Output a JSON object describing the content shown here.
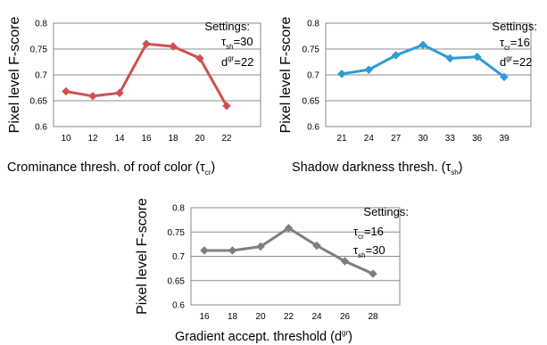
{
  "chart_data": [
    {
      "type": "line",
      "x": [
        10,
        12,
        14,
        16,
        18,
        20,
        22
      ],
      "categories": [
        "10",
        "12",
        "14",
        "16",
        "18",
        "20",
        "22"
      ],
      "series": [
        {
          "values": [
            0.668,
            0.659,
            0.665,
            0.76,
            0.755,
            0.732,
            0.64
          ],
          "color": "#d0504f"
        }
      ],
      "ylabel": "Pixel level F-score",
      "xlabel": {
        "text": "Crominance thresh. of roof color (",
        "sym": "τ",
        "sub": "cr",
        "sup": "",
        "end": ")"
      },
      "ylim": [
        0.6,
        0.8
      ],
      "yticks": [
        "0.6",
        "0.65",
        "0.7",
        "0.75",
        "0.8"
      ],
      "grid": "horizontal",
      "settings": {
        "title": "Settings:",
        "params": [
          {
            "sym": "τ",
            "sub": "sh",
            "sup": "",
            "value": "=30"
          },
          {
            "sym": "d",
            "sub": "",
            "sup": "gr",
            "value": "=22"
          }
        ]
      }
    },
    {
      "type": "line",
      "x": [
        21,
        24,
        27,
        30,
        33,
        36,
        39
      ],
      "categories": [
        "21",
        "24",
        "27",
        "30",
        "33",
        "36",
        "39"
      ],
      "series": [
        {
          "values": [
            0.702,
            0.71,
            0.738,
            0.758,
            0.732,
            0.735,
            0.696
          ],
          "color": "#2e9bd6"
        }
      ],
      "ylabel": "Pixel level F-score",
      "xlabel": {
        "text": "Shadow darkness thresh. (",
        "sym": "τ",
        "sub": "sh",
        "sup": "",
        "end": ")"
      },
      "ylim": [
        0.6,
        0.8
      ],
      "yticks": [
        "0.6",
        "0.65",
        "0.7",
        "0.75",
        "0.8"
      ],
      "grid": "horizontal",
      "settings": {
        "title": "Settings:",
        "params": [
          {
            "sym": "τ",
            "sub": "cr",
            "sup": "",
            "value": "=16"
          },
          {
            "sym": "d",
            "sub": "",
            "sup": "gr",
            "value": "=22"
          }
        ]
      }
    },
    {
      "type": "line",
      "x": [
        16,
        18,
        20,
        22,
        24,
        26,
        28
      ],
      "categories": [
        "16",
        "18",
        "20",
        "22",
        "24",
        "26",
        "28"
      ],
      "series": [
        {
          "values": [
            0.712,
            0.712,
            0.72,
            0.758,
            0.722,
            0.69,
            0.664
          ],
          "color": "#7f7f7f"
        }
      ],
      "ylabel": "Pixel level F-score",
      "xlabel": {
        "text": "Gradient accept. threshold (",
        "sym": "d",
        "sub": "",
        "sup": "gr",
        "end": ")"
      },
      "ylim": [
        0.6,
        0.8
      ],
      "yticks": [
        "0.6",
        "0.65",
        "0.7",
        "0.75",
        "0.8"
      ],
      "grid": "horizontal",
      "settings": {
        "title": "Settings:",
        "params": [
          {
            "sym": "τ",
            "sub": "cr",
            "sup": "",
            "value": "=16"
          },
          {
            "sym": "τ",
            "sub": "sh",
            "sup": "",
            "value": "=30"
          }
        ]
      }
    }
  ]
}
